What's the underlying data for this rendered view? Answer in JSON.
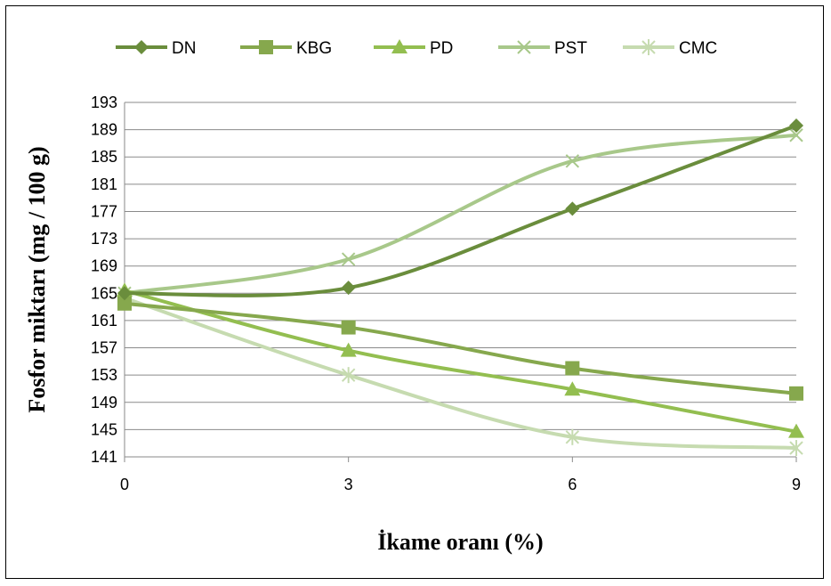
{
  "chart_data": {
    "type": "line",
    "title": "",
    "xlabel": "İkame oranı (%)",
    "ylabel": "Fosfor miktarı (mg / 100 g)",
    "x": [
      0,
      3,
      6,
      9
    ],
    "x_ticks": [
      "0",
      "3",
      "6",
      "9"
    ],
    "y_ticks": [
      "141",
      "145",
      "149",
      "153",
      "157",
      "161",
      "165",
      "169",
      "173",
      "177",
      "181",
      "185",
      "189",
      "193"
    ],
    "ylim": [
      141,
      193
    ],
    "grid": "horizontal",
    "legend_position": "top",
    "series": [
      {
        "name": "DN",
        "values": [
          165,
          165.8,
          177.4,
          189.6
        ],
        "marker": "diamond",
        "color": "#6a8d3c"
      },
      {
        "name": "KBG",
        "values": [
          163.5,
          160,
          154,
          150.3
        ],
        "marker": "square",
        "color": "#86a84d"
      },
      {
        "name": "PD",
        "values": [
          165.4,
          156.6,
          150.9,
          144.7
        ],
        "marker": "triangle",
        "color": "#93be50"
      },
      {
        "name": "PST",
        "values": [
          165,
          170,
          184.4,
          188.2
        ],
        "marker": "x",
        "color": "#a8c88a"
      },
      {
        "name": "CMC",
        "values": [
          164.3,
          153,
          143.9,
          142.3
        ],
        "marker": "star",
        "color": "#c6dbb0"
      }
    ]
  }
}
